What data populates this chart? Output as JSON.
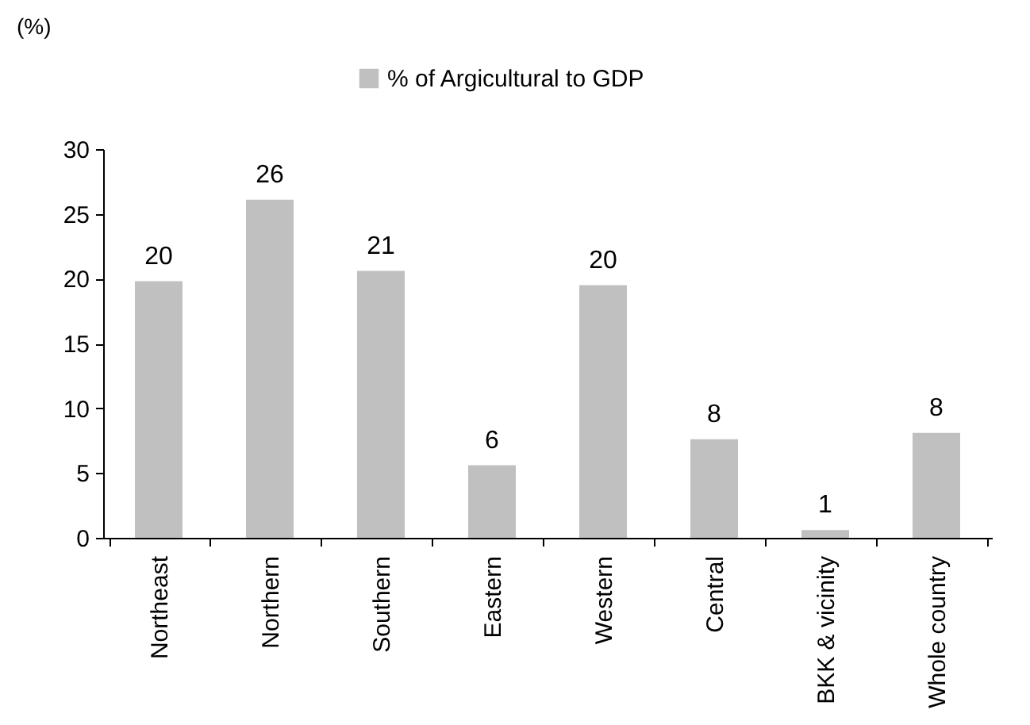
{
  "chart_data": {
    "type": "bar",
    "ylabel": "(%)",
    "categories": [
      "Northeast",
      "Northern",
      "Southern",
      "Eastern",
      "Western",
      "Central",
      "BKK & vicinity",
      "Whole country"
    ],
    "series": [
      {
        "name": "% of Argicultural to GDP",
        "color": "#c0c0c0",
        "values": [
          19.8,
          26.1,
          20.6,
          5.6,
          19.5,
          7.6,
          0.6,
          8.1
        ],
        "value_labels": [
          "20",
          "26",
          "21",
          "6",
          "20",
          "8",
          "1",
          "8"
        ]
      }
    ],
    "ylim": [
      0,
      30
    ],
    "yticks": [
      0,
      5,
      10,
      15,
      20,
      25,
      30
    ],
    "grid": false,
    "legend": "top"
  }
}
